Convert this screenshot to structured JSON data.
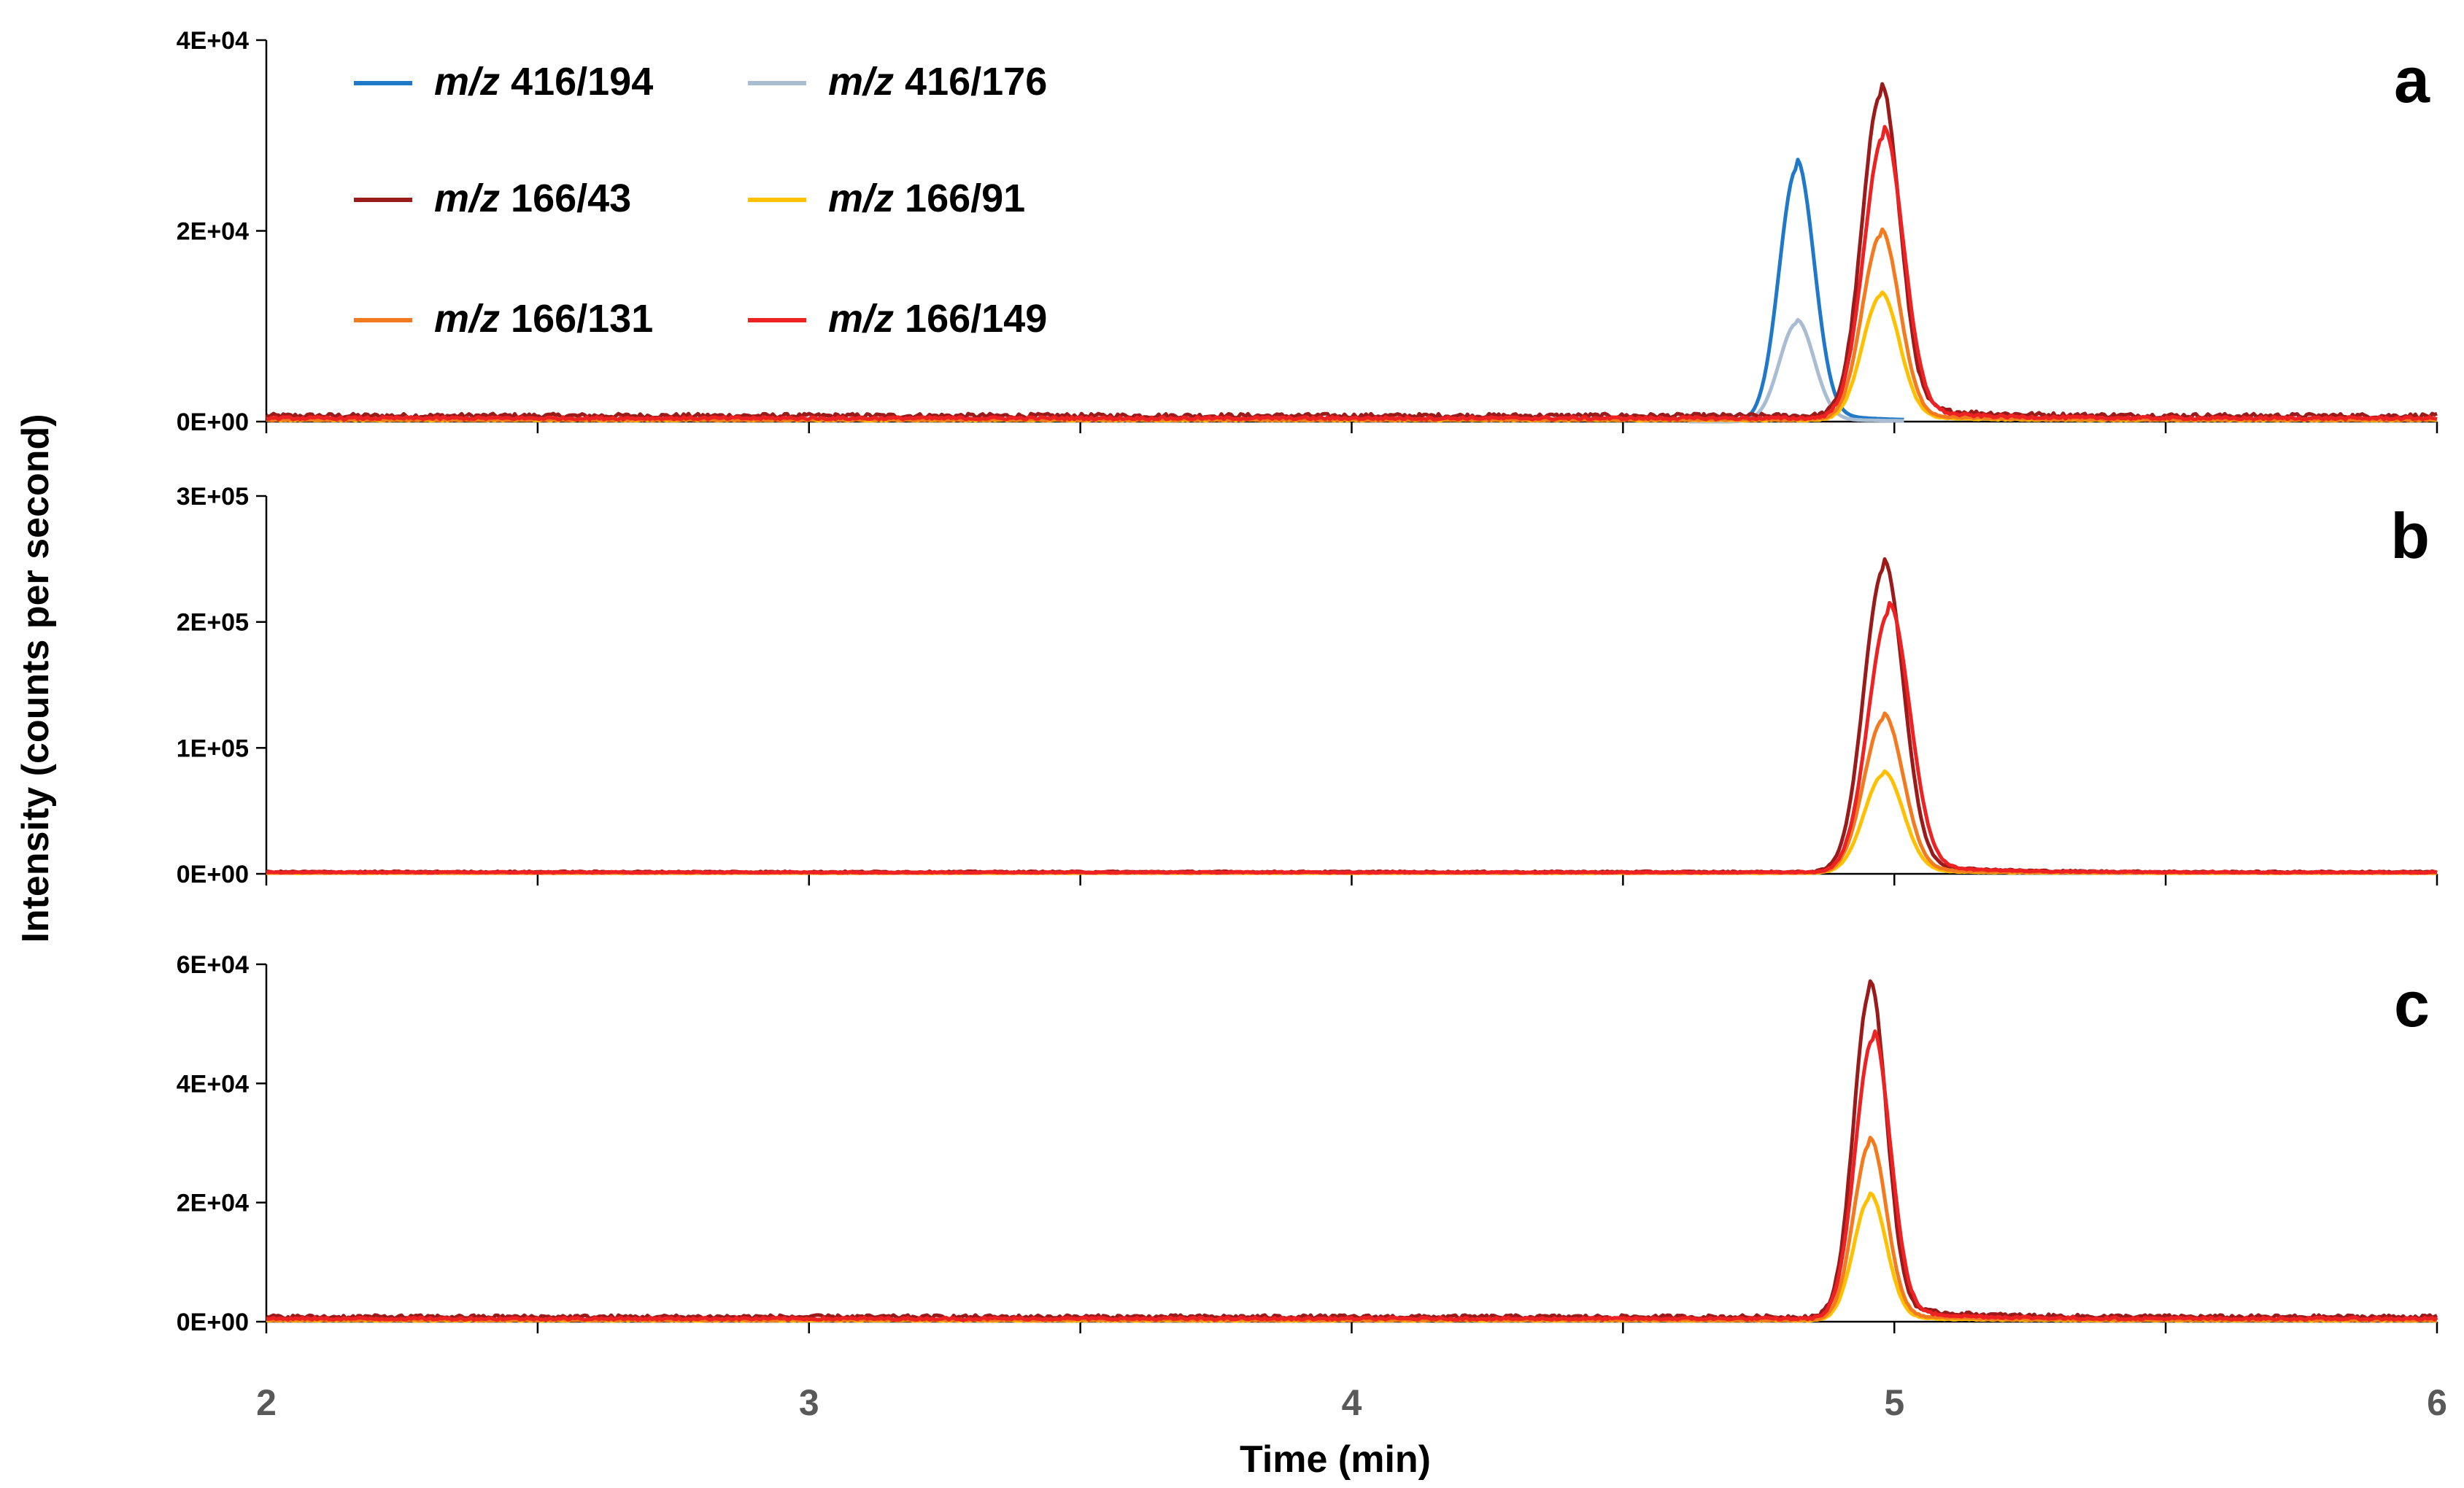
{
  "chart_data": {
    "type": "line",
    "title": "",
    "xlabel": "Time (min)",
    "ylabel": "Intensity (counts per second)",
    "xlim": [
      2,
      6
    ],
    "x_ticks": [
      "2",
      "3",
      "4",
      "5",
      "6"
    ],
    "legend": {
      "placement": "top-left of panel a",
      "entries": [
        {
          "prefix": "m/z",
          "text": "416/194",
          "color": "#1f78c8"
        },
        {
          "prefix": "m/z",
          "text": "416/176",
          "color": "#a9bdd2"
        },
        {
          "prefix": "m/z",
          "text": "166/43",
          "color": "#9b1b1b"
        },
        {
          "prefix": "m/z",
          "text": "166/91",
          "color": "#ffc000"
        },
        {
          "prefix": "m/z",
          "text": "166/131",
          "color": "#f47a20"
        },
        {
          "prefix": "m/z",
          "text": "166/149",
          "color": "#ee2222"
        }
      ]
    },
    "panels": [
      {
        "label": "a",
        "ylim": [
          0,
          40000
        ],
        "y_ticks": [
          "0E+00",
          "2E+04",
          "4E+04"
        ],
        "baseline": {
          "166/43": 600,
          "166/149": 350,
          "166/131": 200,
          "166/91": 150
        },
        "series": [
          {
            "name": "m/z 416/194",
            "color": "#1f78c8",
            "peak_time": 4.82,
            "peak_height": 26500,
            "width": 0.032
          },
          {
            "name": "m/z 416/176",
            "color": "#a9bdd2",
            "peak_time": 4.82,
            "peak_height": 10300,
            "width": 0.032
          },
          {
            "name": "m/z 166/43",
            "color": "#9b1b1b",
            "peak_time": 4.975,
            "peak_height": 33800,
            "width": 0.034
          },
          {
            "name": "m/z 166/91",
            "color": "#ffc000",
            "peak_time": 4.975,
            "peak_height": 13000,
            "width": 0.034
          },
          {
            "name": "m/z 166/131",
            "color": "#f47a20",
            "peak_time": 4.975,
            "peak_height": 19300,
            "width": 0.034
          },
          {
            "name": "m/z 166/149",
            "color": "#ee2222",
            "peak_time": 4.98,
            "peak_height": 29500,
            "width": 0.036
          }
        ]
      },
      {
        "label": "b",
        "ylim": [
          0,
          300000
        ],
        "y_ticks": [
          "0E+00",
          "1E+05",
          "2E+05",
          "3E+05"
        ],
        "baseline": {
          "166/43": 1500,
          "166/149": 1200,
          "166/131": 800,
          "166/91": 600
        },
        "series": [
          {
            "name": "m/z 166/43",
            "color": "#9b1b1b",
            "peak_time": 4.98,
            "peak_height": 240000,
            "width": 0.036
          },
          {
            "name": "m/z 166/91",
            "color": "#ffc000",
            "peak_time": 4.98,
            "peak_height": 78000,
            "width": 0.036
          },
          {
            "name": "m/z 166/131",
            "color": "#f47a20",
            "peak_time": 4.98,
            "peak_height": 122000,
            "width": 0.036
          },
          {
            "name": "m/z 166/149",
            "color": "#ee2222",
            "peak_time": 4.99,
            "peak_height": 206000,
            "width": 0.038
          }
        ]
      },
      {
        "label": "c",
        "ylim": [
          0,
          60000
        ],
        "y_ticks": [
          "0E+00",
          "2E+04",
          "4E+04",
          "6E+04"
        ],
        "baseline": {
          "166/43": 800,
          "166/149": 500,
          "166/131": 300,
          "166/91": 200
        },
        "series": [
          {
            "name": "m/z 166/43",
            "color": "#9b1b1b",
            "peak_time": 4.955,
            "peak_height": 54500,
            "width": 0.03
          },
          {
            "name": "m/z 166/91",
            "color": "#ffc000",
            "peak_time": 4.955,
            "peak_height": 20500,
            "width": 0.03
          },
          {
            "name": "m/z 166/131",
            "color": "#f47a20",
            "peak_time": 4.955,
            "peak_height": 29500,
            "width": 0.03
          },
          {
            "name": "m/z 166/149",
            "color": "#ee2222",
            "peak_time": 4.96,
            "peak_height": 47000,
            "width": 0.032
          }
        ]
      }
    ]
  }
}
